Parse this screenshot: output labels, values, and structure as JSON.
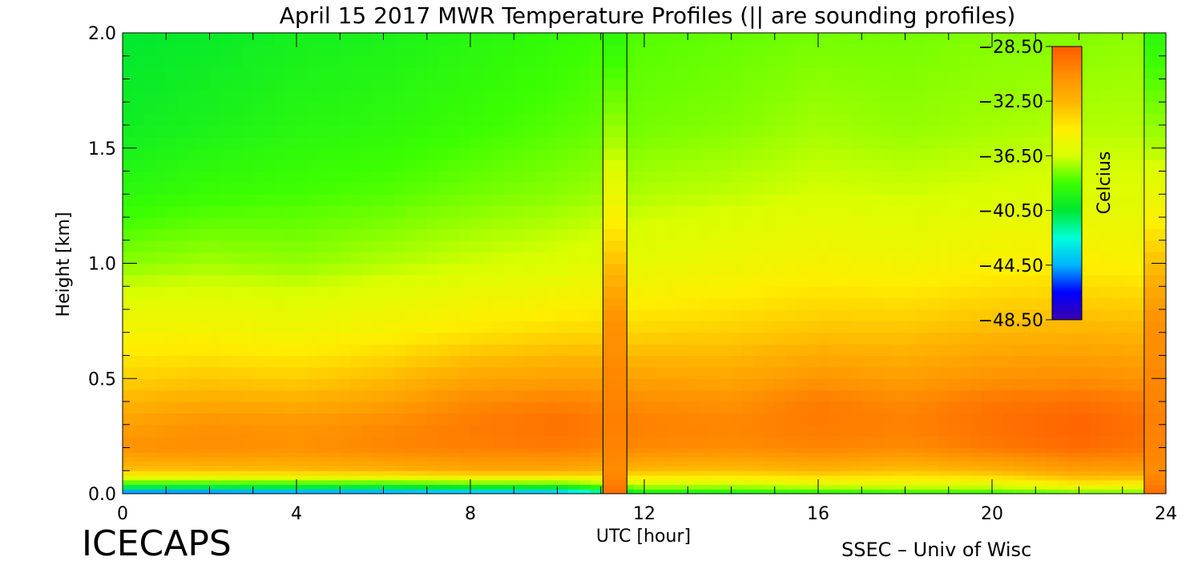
{
  "chart_data": {
    "type": "heatmap",
    "title": "April 15 2017 MWR Temperature Profiles (|| are sounding profiles)",
    "xlabel": "UTC [hour]",
    "ylabel": "Height [km]",
    "xlim": [
      0,
      24
    ],
    "ylim": [
      0,
      2
    ],
    "x_ticks": [
      0,
      4,
      8,
      12,
      16,
      20,
      24
    ],
    "x_tick_labels": [
      "0",
      "4",
      "8",
      "12",
      "16",
      "20",
      "24"
    ],
    "y_ticks": [
      0,
      0.5,
      1,
      1.5,
      2
    ],
    "y_tick_labels": [
      "0.0",
      "0.5",
      "1.0",
      "1.5",
      "2.0"
    ],
    "grid": false,
    "colorbar": {
      "label": "Celcius",
      "min": -48.5,
      "max": -28.5,
      "ticks": [
        -28.5,
        -32.5,
        -36.5,
        -40.5,
        -44.5,
        -48.5
      ],
      "tick_labels": [
        "−28.50",
        "−32.50",
        "−36.50",
        "−40.50",
        "−44.50",
        "−48.50"
      ],
      "colormap": [
        "#3a00b0",
        "#0000ff",
        "#00b4ff",
        "#00ffd8",
        "#00e830",
        "#3cff00",
        "#d8ff00",
        "#ffee00",
        "#ffb400",
        "#ff8c00",
        "#ff5a00"
      ],
      "placement": "top-right"
    },
    "sounding_times": [
      11.05,
      11.6,
      23.5
    ],
    "sounding_profiles": {
      "note_from_title": "|| are sounding profiles",
      "heights_km": [
        0.0,
        0.05,
        0.1,
        0.2,
        0.3,
        0.5,
        0.75,
        0.9,
        1.2,
        1.5,
        2.0
      ],
      "temps_c": [
        -29.2,
        -30.0,
        -30.5,
        -30.2,
        -30.0,
        -30.3,
        -30.8,
        -32.0,
        -34.8,
        -37.0,
        -39.0
      ]
    },
    "profile_times": [
      0,
      2,
      4,
      6,
      8,
      10,
      12,
      14,
      16,
      18,
      20,
      22,
      24
    ],
    "profile_heights_km": [
      0.0,
      0.04,
      0.1,
      0.2,
      0.3,
      0.4,
      0.5,
      0.7,
      1.0,
      1.3,
      1.6,
      2.0
    ],
    "profile_temps_c": [
      [
        -46.5,
        -39.0,
        -33.0,
        -30.8,
        -31.5,
        -32.5,
        -33.5,
        -35.0,
        -37.5,
        -39.0,
        -40.0,
        -40.5
      ],
      [
        -46.5,
        -39.0,
        -33.0,
        -30.5,
        -30.8,
        -32.0,
        -33.2,
        -35.0,
        -37.2,
        -38.6,
        -39.6,
        -40.2
      ],
      [
        -46.0,
        -39.0,
        -32.8,
        -30.8,
        -31.0,
        -32.2,
        -33.4,
        -35.2,
        -37.4,
        -38.4,
        -39.2,
        -39.8
      ],
      [
        -46.0,
        -39.0,
        -32.5,
        -30.2,
        -30.5,
        -31.6,
        -32.8,
        -34.8,
        -37.0,
        -38.2,
        -39.0,
        -39.6
      ],
      [
        -45.5,
        -38.5,
        -32.0,
        -30.0,
        -29.8,
        -30.4,
        -31.8,
        -34.2,
        -36.6,
        -37.8,
        -38.6,
        -39.2
      ],
      [
        -45.5,
        -38.5,
        -32.0,
        -29.8,
        -29.4,
        -30.0,
        -31.5,
        -33.8,
        -36.3,
        -37.5,
        -38.2,
        -38.8
      ],
      [
        -40.0,
        -36.5,
        -32.8,
        -30.4,
        -30.0,
        -30.6,
        -31.6,
        -33.6,
        -35.8,
        -37.0,
        -37.8,
        -38.2
      ],
      [
        -40.0,
        -36.5,
        -33.0,
        -30.6,
        -30.2,
        -30.8,
        -31.8,
        -33.4,
        -35.4,
        -36.8,
        -37.6,
        -38.0
      ],
      [
        -39.5,
        -36.0,
        -32.5,
        -30.2,
        -29.8,
        -29.8,
        -31.0,
        -33.0,
        -35.0,
        -36.5,
        -37.2,
        -37.8
      ],
      [
        -39.0,
        -36.0,
        -33.0,
        -30.5,
        -30.0,
        -30.4,
        -31.4,
        -33.0,
        -35.2,
        -36.6,
        -37.4,
        -37.8
      ],
      [
        -39.0,
        -36.0,
        -32.5,
        -29.8,
        -29.4,
        -29.6,
        -30.8,
        -32.6,
        -34.8,
        -36.4,
        -37.2,
        -37.6
      ],
      [
        -38.5,
        -34.5,
        -31.5,
        -29.2,
        -28.8,
        -29.4,
        -30.6,
        -32.4,
        -34.6,
        -36.2,
        -37.0,
        -37.6
      ],
      [
        -38.0,
        -35.0,
        -31.5,
        -29.8,
        -29.6,
        -30.0,
        -31.0,
        -32.6,
        -34.8,
        -36.2,
        -37.0,
        -37.4
      ]
    ]
  },
  "footer": {
    "brand": "ICECAPS",
    "credit": "SSEC – Univ of Wisc"
  }
}
